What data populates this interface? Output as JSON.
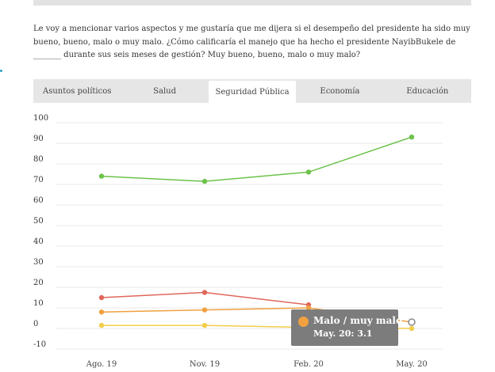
{
  "question": "Le voy a mencionar varios aspectos y me gustaría que me dijera si el desempeño del presidente ha sido muy bueno, bueno, malo o muy malo.  ¿Cómo calificaría el manejo que ha hecho el presidente NayibBukele de _______ durante sus seis meses de gestión? Muy bueno, bueno, malo o muy malo?",
  "tabs": [
    {
      "label": "Asuntos políticos",
      "active": false
    },
    {
      "label": "Salud",
      "active": false
    },
    {
      "label": "Seguridad Pública",
      "active": true
    },
    {
      "label": "Economía",
      "active": false
    },
    {
      "label": "Educación",
      "active": false
    }
  ],
  "colors": {
    "green": "#6cc24a",
    "red": "#e0675b",
    "orange": "#f0a040",
    "yellow": "#f2cd4a",
    "grid": "#e8e8e8",
    "tooltip_bg": "#7c7c7c"
  },
  "chart_data": {
    "type": "line",
    "categories": [
      "Ago. 19",
      "Nov. 19",
      "Feb. 20",
      "May. 20"
    ],
    "yticks": [
      "100",
      "90",
      "80",
      "70",
      "60",
      "50",
      "40",
      "30",
      "20",
      "10",
      "0",
      "-10"
    ],
    "ylim": [
      -10,
      100
    ],
    "grid": true,
    "series": [
      {
        "color": "#6cc24a",
        "values": [
          74,
          71.5,
          76,
          93
        ]
      },
      {
        "color": "#e0675b",
        "values": [
          15,
          17.5,
          11.5,
          null
        ]
      },
      {
        "name": "Malo / muy malo",
        "color": "#f0a040",
        "values": [
          8,
          9,
          10,
          3.1
        ]
      },
      {
        "color": "#f2cd4a",
        "values": [
          1.5,
          1.5,
          0.5,
          0
        ]
      }
    ],
    "tooltip": {
      "title": "Malo / muy malo",
      "text": "May. 20: 3.1",
      "series_index": 2,
      "point_index": 3
    }
  }
}
